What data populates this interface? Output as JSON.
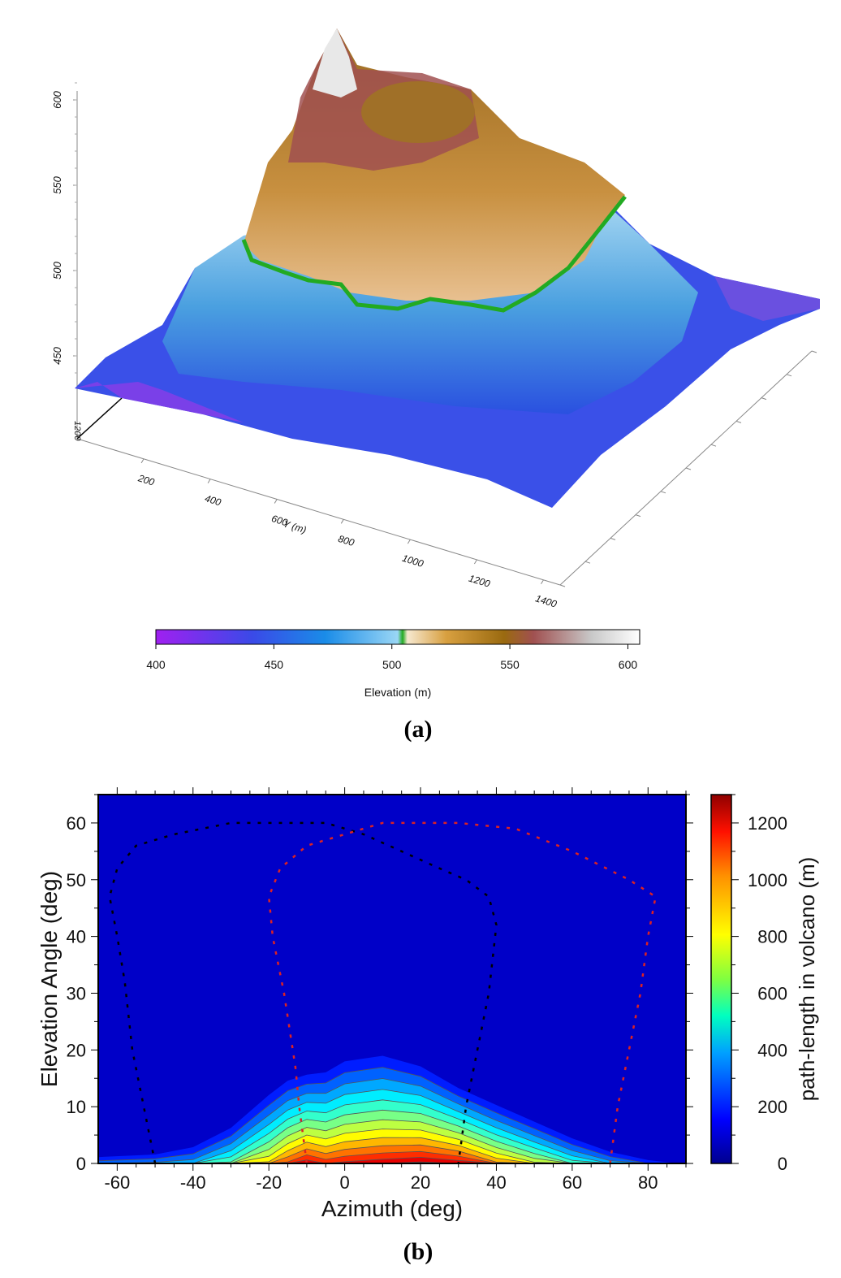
{
  "panel_a": {
    "caption": "(a)",
    "z_ticks": [
      "450",
      "500",
      "550",
      "600"
    ],
    "x_tick_visible": "1200",
    "y_ticks": [
      "200",
      "400",
      "600",
      "800",
      "1000",
      "1200",
      "1400"
    ],
    "y_label": "Y (m)",
    "colorbar": {
      "label": "Elevation (m)",
      "ticks": [
        "400",
        "450",
        "500",
        "550",
        "600"
      ],
      "range": [
        400,
        605
      ],
      "highlight_contour_m": 505,
      "highlight_color": "#22aa22"
    }
  },
  "panel_b": {
    "caption": "(b)",
    "colorbar": {
      "label": "path-length in volcano (m)",
      "ticks": [
        "0",
        "200",
        "400",
        "600",
        "800",
        "1000",
        "1200"
      ],
      "range": [
        0,
        1300
      ],
      "colormap": "jet"
    }
  },
  "chart_data": [
    {
      "type": "surface",
      "panel": "(a)",
      "zlabel": "",
      "ylabel": "Y (m)",
      "zlim": [
        420,
        610
      ],
      "colorbar_label": "Elevation (m)"
    },
    {
      "type": "heatmap",
      "panel": "(b)",
      "xlabel": "Azimuth (deg)",
      "ylabel": "Elevation Angle (deg)",
      "xlim": [
        -65,
        90
      ],
      "ylim": [
        0,
        65
      ],
      "x_ticks": [
        -60,
        -40,
        -20,
        0,
        20,
        40,
        60,
        80
      ],
      "y_ticks": [
        0,
        10,
        20,
        30,
        40,
        50,
        60
      ],
      "colorbar_label": "path-length in volcano (m)",
      "colorbar_range": [
        0,
        1300
      ],
      "contour_interval_m": 100,
      "background_color": "#0000c8",
      "profile": {
        "azimuth_deg": [
          -65,
          -50,
          -40,
          -30,
          -20,
          -15,
          -10,
          -5,
          0,
          10,
          20,
          30,
          40,
          50,
          60,
          70,
          80,
          88
        ],
        "max_elevation_with_signal_deg": [
          1.5,
          2,
          3.5,
          7,
          13,
          15.5,
          16.5,
          17,
          19,
          20,
          18,
          14,
          11,
          8,
          5,
          2.5,
          1,
          0.3
        ],
        "path_length_at_horizon_m": [
          250,
          300,
          350,
          600,
          900,
          1100,
          1250,
          1150,
          1200,
          1250,
          1300,
          1250,
          1000,
          800,
          550,
          350,
          150,
          50
        ]
      },
      "dashed_curves": [
        {
          "color": "#000000",
          "points": [
            [
              -50,
              0
            ],
            [
              -53,
              10
            ],
            [
              -56,
              20
            ],
            [
              -58,
              32
            ],
            [
              -60,
              40
            ],
            [
              -62,
              47
            ],
            [
              -60,
              52
            ],
            [
              -55,
              56
            ],
            [
              -45,
              58
            ],
            [
              -30,
              60
            ],
            [
              -15,
              60
            ],
            [
              -5,
              60
            ],
            [
              5,
              58
            ],
            [
              15,
              55
            ],
            [
              25,
              52
            ],
            [
              32,
              50
            ],
            [
              38,
              47
            ],
            [
              40,
              42
            ],
            [
              38,
              30
            ],
            [
              35,
              20
            ],
            [
              32,
              10
            ],
            [
              30,
              0
            ]
          ]
        },
        {
          "color": "#dd2222",
          "points": [
            [
              -10,
              0
            ],
            [
              -12,
              10
            ],
            [
              -13,
              17
            ],
            [
              -16,
              30
            ],
            [
              -19,
              40
            ],
            [
              -20,
              47
            ],
            [
              -17,
              52
            ],
            [
              -10,
              56
            ],
            [
              0,
              58
            ],
            [
              10,
              60
            ],
            [
              20,
              60
            ],
            [
              30,
              60
            ],
            [
              45,
              59
            ],
            [
              60,
              55
            ],
            [
              75,
              50
            ],
            [
              82,
              47
            ],
            [
              80,
              40
            ],
            [
              78,
              30
            ],
            [
              75,
              20
            ],
            [
              72,
              10
            ],
            [
              70,
              0
            ]
          ]
        }
      ]
    }
  ]
}
